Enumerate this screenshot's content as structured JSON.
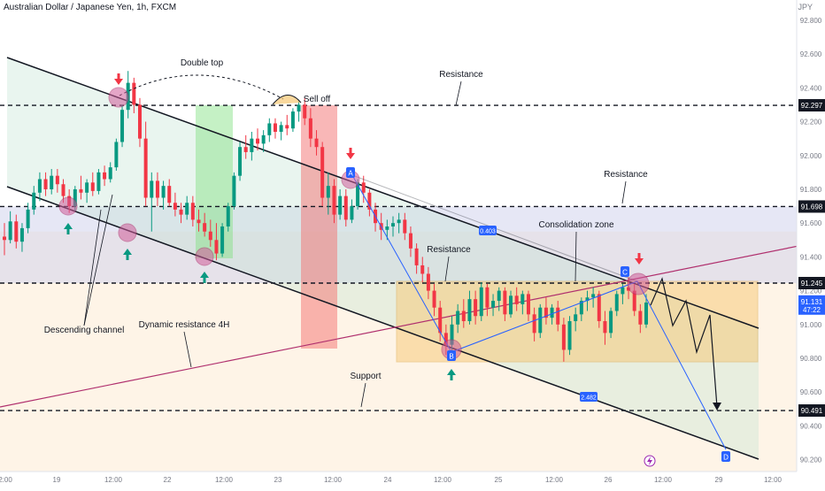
{
  "header": {
    "symbol_title": "Australian Dollar / Japanese Yen, 1h, FXCM",
    "currency": "JPY"
  },
  "chart_data": {
    "type": "candlestick",
    "title": "Australian Dollar / Japanese Yen, 1h, FXCM",
    "ylim": [
      90.13,
      92.92
    ],
    "y_ticks": [
      92.8,
      92.6,
      92.4,
      92.2,
      92.0,
      91.8,
      91.6,
      91.4,
      91.2,
      91.0,
      90.8,
      90.6,
      90.4,
      90.2
    ],
    "x_ticks": [
      "2:00",
      "19",
      "12:00",
      "22",
      "12:00",
      "23",
      "12:00",
      "24",
      "12:00",
      "25",
      "12:00",
      "26",
      "12:00",
      "29",
      "12:00"
    ],
    "price_labels": [
      {
        "value": "92.297",
        "color": "#131722"
      },
      {
        "value": "91.698",
        "color": "#131722"
      },
      {
        "value": "91.245",
        "color": "#131722"
      },
      {
        "value": "90.491",
        "color": "#131722"
      }
    ],
    "current_price": {
      "value": "91.131",
      "countdown": "47:22",
      "color": "#2962ff"
    },
    "horizontal_levels": [
      92.297,
      91.698,
      91.245,
      90.491
    ],
    "annotations": [
      "Double top",
      "Sell off",
      "Resistance",
      "Resistance",
      "Resistance",
      "Consolidation zone",
      "Descending channel",
      "Dynamic resistance 4H",
      "Support"
    ],
    "measurements": [
      "0.403",
      "2.482"
    ],
    "pattern_points": [
      "A",
      "B",
      "C",
      "D"
    ],
    "candles": [
      {
        "o": 91.52,
        "h": 91.6,
        "l": 91.41,
        "c": 91.5
      },
      {
        "o": 91.5,
        "h": 91.67,
        "l": 91.48,
        "c": 91.61
      },
      {
        "o": 91.61,
        "h": 91.65,
        "l": 91.45,
        "c": 91.49
      },
      {
        "o": 91.49,
        "h": 91.6,
        "l": 91.43,
        "c": 91.57
      },
      {
        "o": 91.57,
        "h": 91.72,
        "l": 91.54,
        "c": 91.68
      },
      {
        "o": 91.68,
        "h": 91.82,
        "l": 91.65,
        "c": 91.78
      },
      {
        "o": 91.78,
        "h": 91.9,
        "l": 91.73,
        "c": 91.86
      },
      {
        "o": 91.86,
        "h": 91.9,
        "l": 91.76,
        "c": 91.8
      },
      {
        "o": 91.8,
        "h": 91.92,
        "l": 91.77,
        "c": 91.88
      },
      {
        "o": 91.88,
        "h": 91.92,
        "l": 91.78,
        "c": 91.83
      },
      {
        "o": 91.83,
        "h": 91.86,
        "l": 91.72,
        "c": 91.76
      },
      {
        "o": 91.76,
        "h": 91.8,
        "l": 91.66,
        "c": 91.7
      },
      {
        "o": 91.7,
        "h": 91.82,
        "l": 91.67,
        "c": 91.8
      },
      {
        "o": 91.8,
        "h": 91.88,
        "l": 91.74,
        "c": 91.78
      },
      {
        "o": 91.78,
        "h": 91.86,
        "l": 91.72,
        "c": 91.84
      },
      {
        "o": 91.84,
        "h": 91.9,
        "l": 91.76,
        "c": 91.79
      },
      {
        "o": 91.79,
        "h": 91.92,
        "l": 91.77,
        "c": 91.9
      },
      {
        "o": 91.9,
        "h": 91.94,
        "l": 91.82,
        "c": 91.86
      },
      {
        "o": 91.86,
        "h": 91.96,
        "l": 91.84,
        "c": 91.93
      },
      {
        "o": 91.93,
        "h": 92.1,
        "l": 91.91,
        "c": 92.08
      },
      {
        "o": 92.08,
        "h": 92.3,
        "l": 92.05,
        "c": 92.27
      },
      {
        "o": 92.27,
        "h": 92.5,
        "l": 92.22,
        "c": 92.43
      },
      {
        "o": 92.43,
        "h": 92.46,
        "l": 92.25,
        "c": 92.3
      },
      {
        "o": 92.3,
        "h": 92.34,
        "l": 92.05,
        "c": 92.1
      },
      {
        "o": 92.1,
        "h": 92.2,
        "l": 91.7,
        "c": 91.75
      },
      {
        "o": 91.75,
        "h": 91.9,
        "l": 91.55,
        "c": 91.85
      },
      {
        "o": 91.85,
        "h": 91.9,
        "l": 91.7,
        "c": 91.75
      },
      {
        "o": 91.75,
        "h": 91.85,
        "l": 91.68,
        "c": 91.82
      },
      {
        "o": 91.82,
        "h": 91.86,
        "l": 91.7,
        "c": 91.72
      },
      {
        "o": 91.72,
        "h": 91.78,
        "l": 91.64,
        "c": 91.68
      },
      {
        "o": 91.68,
        "h": 91.72,
        "l": 91.6,
        "c": 91.65
      },
      {
        "o": 91.65,
        "h": 91.76,
        "l": 91.62,
        "c": 91.72
      },
      {
        "o": 91.72,
        "h": 91.76,
        "l": 91.58,
        "c": 91.62
      },
      {
        "o": 91.62,
        "h": 91.68,
        "l": 91.55,
        "c": 91.6
      },
      {
        "o": 91.6,
        "h": 91.66,
        "l": 91.52,
        "c": 91.55
      },
      {
        "o": 91.55,
        "h": 91.62,
        "l": 91.46,
        "c": 91.5
      },
      {
        "o": 91.5,
        "h": 91.6,
        "l": 91.38,
        "c": 91.42
      },
      {
        "o": 91.42,
        "h": 91.6,
        "l": 91.4,
        "c": 91.58
      },
      {
        "o": 91.58,
        "h": 91.72,
        "l": 91.55,
        "c": 91.7
      },
      {
        "o": 91.7,
        "h": 91.9,
        "l": 91.68,
        "c": 91.88
      },
      {
        "o": 91.88,
        "h": 92.08,
        "l": 91.85,
        "c": 92.05
      },
      {
        "o": 92.05,
        "h": 92.12,
        "l": 91.98,
        "c": 92.02
      },
      {
        "o": 92.02,
        "h": 92.14,
        "l": 91.97,
        "c": 92.1
      },
      {
        "o": 92.1,
        "h": 92.16,
        "l": 92.03,
        "c": 92.07
      },
      {
        "o": 92.07,
        "h": 92.15,
        "l": 92.02,
        "c": 92.12
      },
      {
        "o": 92.12,
        "h": 92.22,
        "l": 92.08,
        "c": 92.19
      },
      {
        "o": 92.19,
        "h": 92.22,
        "l": 92.1,
        "c": 92.14
      },
      {
        "o": 92.14,
        "h": 92.2,
        "l": 92.09,
        "c": 92.18
      },
      {
        "o": 92.18,
        "h": 92.24,
        "l": 92.12,
        "c": 92.16
      },
      {
        "o": 92.16,
        "h": 92.28,
        "l": 92.14,
        "c": 92.26
      },
      {
        "o": 92.26,
        "h": 92.33,
        "l": 92.2,
        "c": 92.3
      },
      {
        "o": 92.3,
        "h": 92.34,
        "l": 92.18,
        "c": 92.22
      },
      {
        "o": 92.22,
        "h": 92.28,
        "l": 92.05,
        "c": 92.1
      },
      {
        "o": 92.1,
        "h": 92.15,
        "l": 92.0,
        "c": 92.05
      },
      {
        "o": 92.05,
        "h": 92.08,
        "l": 91.7,
        "c": 91.75
      },
      {
        "o": 91.75,
        "h": 91.9,
        "l": 91.65,
        "c": 91.82
      },
      {
        "o": 91.82,
        "h": 91.86,
        "l": 91.6,
        "c": 91.65
      },
      {
        "o": 91.65,
        "h": 91.8,
        "l": 91.62,
        "c": 91.76
      },
      {
        "o": 91.76,
        "h": 91.8,
        "l": 91.58,
        "c": 91.62
      },
      {
        "o": 91.62,
        "h": 91.74,
        "l": 91.6,
        "c": 91.7
      },
      {
        "o": 91.7,
        "h": 91.86,
        "l": 91.68,
        "c": 91.84
      },
      {
        "o": 91.84,
        "h": 91.88,
        "l": 91.72,
        "c": 91.78
      },
      {
        "o": 91.78,
        "h": 91.8,
        "l": 91.64,
        "c": 91.68
      },
      {
        "o": 91.68,
        "h": 91.72,
        "l": 91.55,
        "c": 91.6
      },
      {
        "o": 91.6,
        "h": 91.66,
        "l": 91.5,
        "c": 91.56
      },
      {
        "o": 91.56,
        "h": 91.62,
        "l": 91.5,
        "c": 91.58
      },
      {
        "o": 91.58,
        "h": 91.64,
        "l": 91.52,
        "c": 91.6
      },
      {
        "o": 91.6,
        "h": 91.66,
        "l": 91.54,
        "c": 91.62
      },
      {
        "o": 91.62,
        "h": 91.66,
        "l": 91.5,
        "c": 91.54
      },
      {
        "o": 91.54,
        "h": 91.58,
        "l": 91.4,
        "c": 91.45
      },
      {
        "o": 91.45,
        "h": 91.48,
        "l": 91.3,
        "c": 91.35
      },
      {
        "o": 91.35,
        "h": 91.4,
        "l": 91.25,
        "c": 91.3
      },
      {
        "o": 91.3,
        "h": 91.34,
        "l": 91.15,
        "c": 91.2
      },
      {
        "o": 91.2,
        "h": 91.24,
        "l": 91.05,
        "c": 91.1
      },
      {
        "o": 91.1,
        "h": 91.14,
        "l": 90.9,
        "c": 90.95
      },
      {
        "o": 90.95,
        "h": 91.0,
        "l": 90.82,
        "c": 90.88
      },
      {
        "o": 90.88,
        "h": 91.05,
        "l": 90.84,
        "c": 91.0
      },
      {
        "o": 91.0,
        "h": 91.12,
        "l": 90.95,
        "c": 91.08
      },
      {
        "o": 91.08,
        "h": 91.15,
        "l": 90.98,
        "c": 91.02
      },
      {
        "o": 91.02,
        "h": 91.2,
        "l": 91.0,
        "c": 91.15
      },
      {
        "o": 91.15,
        "h": 91.2,
        "l": 91.0,
        "c": 91.05
      },
      {
        "o": 91.05,
        "h": 91.25,
        "l": 91.02,
        "c": 91.22
      },
      {
        "o": 91.22,
        "h": 91.24,
        "l": 91.05,
        "c": 91.1
      },
      {
        "o": 91.1,
        "h": 91.18,
        "l": 91.05,
        "c": 91.14
      },
      {
        "o": 91.14,
        "h": 91.22,
        "l": 91.08,
        "c": 91.2
      },
      {
        "o": 91.2,
        "h": 91.22,
        "l": 91.02,
        "c": 91.06
      },
      {
        "o": 91.06,
        "h": 91.2,
        "l": 91.04,
        "c": 91.17
      },
      {
        "o": 91.17,
        "h": 91.22,
        "l": 91.08,
        "c": 91.12
      },
      {
        "o": 91.12,
        "h": 91.2,
        "l": 91.06,
        "c": 91.18
      },
      {
        "o": 91.18,
        "h": 91.2,
        "l": 91.02,
        "c": 91.06
      },
      {
        "o": 91.06,
        "h": 91.1,
        "l": 90.9,
        "c": 90.95
      },
      {
        "o": 90.95,
        "h": 91.12,
        "l": 90.92,
        "c": 91.1
      },
      {
        "o": 91.1,
        "h": 91.16,
        "l": 91.0,
        "c": 91.04
      },
      {
        "o": 91.04,
        "h": 91.12,
        "l": 91.0,
        "c": 91.1
      },
      {
        "o": 91.1,
        "h": 91.14,
        "l": 90.96,
        "c": 91.0
      },
      {
        "o": 91.0,
        "h": 91.04,
        "l": 90.78,
        "c": 90.85
      },
      {
        "o": 90.85,
        "h": 91.05,
        "l": 90.82,
        "c": 91.02
      },
      {
        "o": 91.02,
        "h": 91.1,
        "l": 90.96,
        "c": 91.06
      },
      {
        "o": 91.06,
        "h": 91.16,
        "l": 91.02,
        "c": 91.14
      },
      {
        "o": 91.14,
        "h": 91.2,
        "l": 91.08,
        "c": 91.16
      },
      {
        "o": 91.16,
        "h": 91.22,
        "l": 91.1,
        "c": 91.18
      },
      {
        "o": 91.18,
        "h": 91.2,
        "l": 90.98,
        "c": 91.02
      },
      {
        "o": 91.02,
        "h": 91.08,
        "l": 90.88,
        "c": 90.95
      },
      {
        "o": 90.95,
        "h": 91.1,
        "l": 90.92,
        "c": 91.08
      },
      {
        "o": 91.08,
        "h": 91.2,
        "l": 91.05,
        "c": 91.18
      },
      {
        "o": 91.18,
        "h": 91.24,
        "l": 91.12,
        "c": 91.22
      },
      {
        "o": 91.22,
        "h": 91.28,
        "l": 91.15,
        "c": 91.2
      },
      {
        "o": 91.2,
        "h": 91.24,
        "l": 91.05,
        "c": 91.08
      },
      {
        "o": 91.08,
        "h": 91.12,
        "l": 90.95,
        "c": 91.0
      },
      {
        "o": 91.0,
        "h": 91.18,
        "l": 90.98,
        "c": 91.13
      }
    ]
  }
}
